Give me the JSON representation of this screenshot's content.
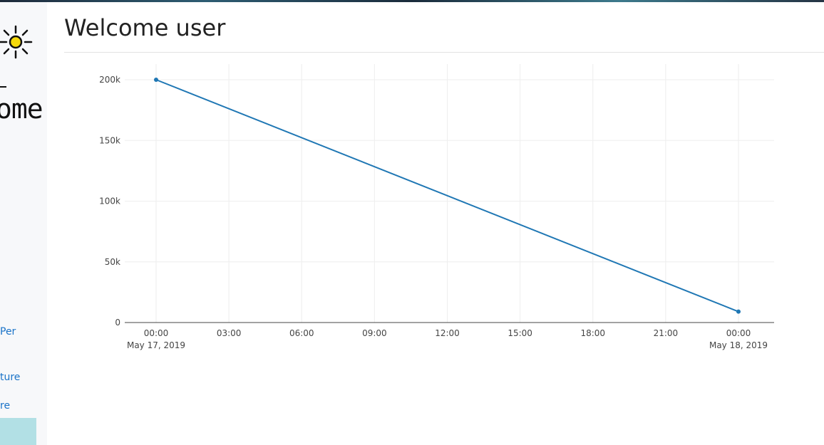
{
  "page": {
    "title": "Welcome user"
  },
  "sidebar": {
    "logo_text": "ome",
    "links": [
      {
        "label": "Per"
      },
      {
        "label": "ture"
      },
      {
        "label": "re"
      }
    ],
    "colors": {
      "link": "#1a73c8",
      "active": "#b2e0e5"
    }
  },
  "chart_data": {
    "type": "line",
    "title": "",
    "xlabel": "",
    "ylabel": "",
    "x_ticks": [
      {
        "time": "00:00",
        "date": "May 17, 2019"
      },
      {
        "time": "03:00",
        "date": ""
      },
      {
        "time": "06:00",
        "date": ""
      },
      {
        "time": "09:00",
        "date": ""
      },
      {
        "time": "12:00",
        "date": ""
      },
      {
        "time": "15:00",
        "date": ""
      },
      {
        "time": "18:00",
        "date": ""
      },
      {
        "time": "21:00",
        "date": ""
      },
      {
        "time": "00:00",
        "date": "May 18, 2019"
      }
    ],
    "y_ticks": [
      "0",
      "50k",
      "100k",
      "150k",
      "200k"
    ],
    "ylim": [
      0,
      200000
    ],
    "grid": true,
    "series": [
      {
        "color": "#1f77b4",
        "points": [
          {
            "x": "2019-05-17 00:00",
            "y": 200000
          },
          {
            "x": "2019-05-18 00:00",
            "y": 9000
          }
        ]
      }
    ]
  }
}
